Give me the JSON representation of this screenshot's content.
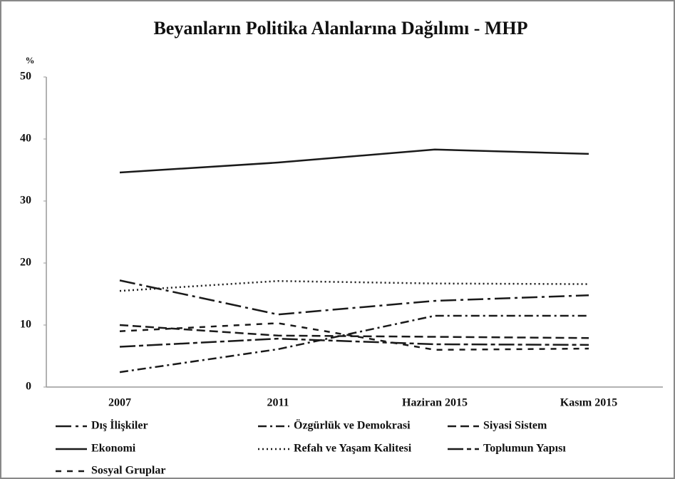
{
  "chart_data": {
    "type": "line",
    "title": "Beyanların Politika Alanlarına Dağılımı - MHP",
    "y_label": "%",
    "categories": [
      "2007",
      "2011",
      "Haziran 2015",
      "Kasım 2015"
    ],
    "ylim": [
      0,
      50
    ],
    "yticks": [
      0,
      10,
      20,
      30,
      40,
      50
    ],
    "series": [
      {
        "name": "Dış İlişkiler",
        "color": "#1a1a1a",
        "dash": "longdashdot",
        "values": [
          17.2,
          11.7,
          13.9,
          14.8
        ]
      },
      {
        "name": "Özgürlük ve Demokrasi",
        "color": "#1a1a1a",
        "dash": "dashdot",
        "values": [
          2.4,
          6.1,
          11.5,
          11.5
        ]
      },
      {
        "name": "Siyasi Sistem",
        "color": "#1a1a1a",
        "dash": "dash",
        "values": [
          10.0,
          8.3,
          8.1,
          7.9
        ]
      },
      {
        "name": "Ekonomi",
        "color": "#1a1a1a",
        "dash": "solid",
        "values": [
          34.6,
          36.2,
          38.3,
          37.6
        ]
      },
      {
        "name": "Refah ve Yaşam Kalitesi",
        "color": "#1a1a1a",
        "dash": "dot",
        "values": [
          15.5,
          17.1,
          16.7,
          16.6
        ]
      },
      {
        "name": "Toplumun Yapısı",
        "color": "#1a1a1a",
        "dash": "longdashshort",
        "values": [
          6.5,
          7.8,
          6.9,
          6.8
        ]
      },
      {
        "name": "Sosyal Gruplar",
        "color": "#1a1a1a",
        "dash": "shortdash",
        "values": [
          9.0,
          10.3,
          6.0,
          6.2
        ]
      }
    ]
  }
}
